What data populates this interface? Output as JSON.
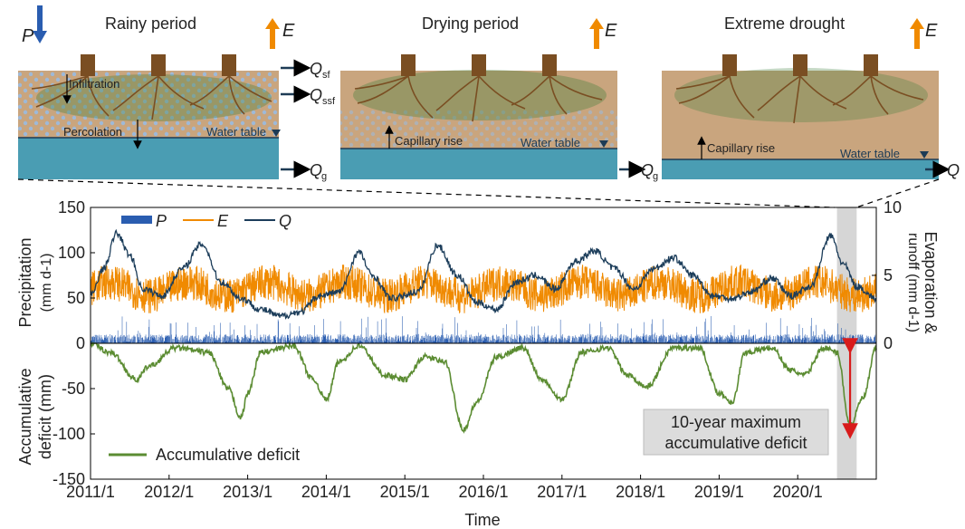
{
  "panels": [
    {
      "title": "Rainy period",
      "water_table": "Water table",
      "infiltration": "Infiltration",
      "percolation": "Percolation",
      "q_sf": "Q",
      "q_sf_sub": "sf",
      "q_ssf": "Q",
      "q_ssf_sub": "ssf",
      "q_g": "Q",
      "q_g_sub": "g",
      "p": "P",
      "e": "E"
    },
    {
      "title": "Drying period",
      "water_table": "Water table",
      "capillary": "Capillary rise",
      "q_g": "Q",
      "q_g_sub": "g",
      "e": "E"
    },
    {
      "title": "Extreme drought",
      "water_table": "Water table",
      "capillary": "Capillary rise",
      "q": "Q",
      "e": "E"
    }
  ],
  "colors": {
    "precip": "#2a5db0",
    "evap": "#f08a00",
    "runoff": "#1c3d5a",
    "deficit": "#5b8c32",
    "deficit_arrow": "#d81b1b",
    "highlight": "#c8c8c8",
    "soil": "#c9a57e",
    "water": "#4a9db3",
    "root": "#7a4e22",
    "canopy": "#3f7f3a"
  },
  "chart_data": [
    {
      "type": "line",
      "x_range": [
        "2011-01",
        "2021-01"
      ],
      "x_ticks": [
        "2011/1",
        "2012/1",
        "2013/1",
        "2014/1",
        "2015/1",
        "2016/1",
        "2017/1",
        "2018/1",
        "2019/1",
        "2020/1"
      ],
      "xlabel": "Time",
      "ylabel_left": [
        "Precipitation",
        "(mm d-1)"
      ],
      "ylim_left": [
        0,
        150
      ],
      "yticks_left": [
        "150",
        "100",
        "50",
        "0"
      ],
      "ylabel_right": [
        "Evaporation &",
        "runoff (mm d-1)"
      ],
      "ylim_right": [
        0,
        10
      ],
      "yticks_right": [
        "10",
        "5",
        "0"
      ],
      "legend": [
        "P",
        "E",
        "Q"
      ],
      "legend_position": "top-left",
      "highlight_period": [
        "2020-07",
        "2020-10"
      ],
      "series": [
        {
          "name": "P",
          "axis": "left",
          "style": "bar",
          "typical_mm_d": 10,
          "peak_mm_d": 32
        },
        {
          "name": "E",
          "axis": "right",
          "style": "line",
          "mean_mm_d": 4.0,
          "range_mm_d": [
            1.8,
            6.0
          ]
        },
        {
          "name": "Q",
          "axis": "right",
          "style": "line",
          "points": [
            [
              "2011-01",
              3.5
            ],
            [
              "2011-03",
              5.5
            ],
            [
              "2011-05",
              8.1
            ],
            [
              "2011-07",
              6.5
            ],
            [
              "2011-09",
              4.0
            ],
            [
              "2011-12",
              3.5
            ],
            [
              "2012-03",
              5.5
            ],
            [
              "2012-06",
              7.3
            ],
            [
              "2012-09",
              4.5
            ],
            [
              "2012-12",
              3.3
            ],
            [
              "2013-03",
              2.5
            ],
            [
              "2013-06",
              2.0
            ],
            [
              "2013-09",
              2.3
            ],
            [
              "2013-12",
              3.5
            ],
            [
              "2014-03",
              3.8
            ],
            [
              "2014-06",
              6.7
            ],
            [
              "2014-08",
              5.0
            ],
            [
              "2014-11",
              3.3
            ],
            [
              "2015-03",
              3.8
            ],
            [
              "2015-06",
              7.2
            ],
            [
              "2015-09",
              5.0
            ],
            [
              "2015-12",
              3.0
            ],
            [
              "2016-03",
              2.5
            ],
            [
              "2016-06",
              4.5
            ],
            [
              "2016-09",
              5.0
            ],
            [
              "2016-12",
              4.0
            ],
            [
              "2017-03",
              6.0
            ],
            [
              "2017-06",
              6.8
            ],
            [
              "2017-09",
              5.5
            ],
            [
              "2017-12",
              4.0
            ],
            [
              "2018-03",
              5.5
            ],
            [
              "2018-06",
              6.3
            ],
            [
              "2018-09",
              5.0
            ],
            [
              "2018-12",
              3.5
            ],
            [
              "2019-03",
              3.3
            ],
            [
              "2019-06",
              3.8
            ],
            [
              "2019-09",
              4.8
            ],
            [
              "2019-12",
              3.5
            ],
            [
              "2020-03",
              4.2
            ],
            [
              "2020-06",
              7.9
            ],
            [
              "2020-08",
              5.8
            ],
            [
              "2020-10",
              4.2
            ],
            [
              "2021-01",
              3.3
            ]
          ]
        }
      ]
    },
    {
      "type": "line",
      "ylabel": [
        "Accumulative",
        "deficit (mm)"
      ],
      "ylim": [
        -150,
        0
      ],
      "yticks": [
        "0",
        "-50",
        "-100",
        "-150"
      ],
      "legend": [
        "Accumulative deficit"
      ],
      "legend_position": "bottom-left",
      "annotation": [
        "10-year maximum",
        "accumulative deficit"
      ],
      "series": [
        {
          "name": "Accumulative deficit",
          "points": [
            [
              "2011-01",
              0
            ],
            [
              "2011-04",
              -10
            ],
            [
              "2011-08",
              -40
            ],
            [
              "2011-10",
              -25
            ],
            [
              "2012-02",
              -5
            ],
            [
              "2012-07",
              -10
            ],
            [
              "2012-10",
              -50
            ],
            [
              "2012-12",
              -82
            ],
            [
              "2013-01",
              -55
            ],
            [
              "2013-03",
              -10
            ],
            [
              "2013-08",
              -3
            ],
            [
              "2013-11",
              -40
            ],
            [
              "2014-01",
              -62
            ],
            [
              "2014-03",
              -20
            ],
            [
              "2014-06",
              -3
            ],
            [
              "2014-10",
              -35
            ],
            [
              "2015-01",
              -40
            ],
            [
              "2015-04",
              -15
            ],
            [
              "2015-07",
              -20
            ],
            [
              "2015-10",
              -95
            ],
            [
              "2015-12",
              -65
            ],
            [
              "2016-03",
              -15
            ],
            [
              "2016-07",
              -5
            ],
            [
              "2016-10",
              -40
            ],
            [
              "2017-01",
              -62
            ],
            [
              "2017-04",
              -10
            ],
            [
              "2017-08",
              -5
            ],
            [
              "2017-11",
              -35
            ],
            [
              "2018-02",
              -48
            ],
            [
              "2018-06",
              -5
            ],
            [
              "2018-10",
              -5
            ],
            [
              "2019-01",
              -55
            ],
            [
              "2019-03",
              -65
            ],
            [
              "2019-05",
              -10
            ],
            [
              "2019-09",
              -5
            ],
            [
              "2019-12",
              -30
            ],
            [
              "2020-02",
              -35
            ],
            [
              "2020-05",
              -5
            ],
            [
              "2020-07",
              -10
            ],
            [
              "2020-09",
              -90
            ],
            [
              "2020-11",
              -60
            ],
            [
              "2021-01",
              -5
            ]
          ]
        }
      ]
    }
  ]
}
